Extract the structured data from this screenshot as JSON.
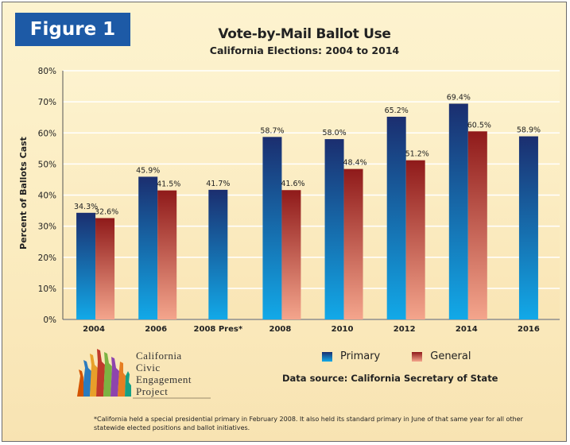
{
  "figure_label": "Figure 1",
  "logo": {
    "lines": [
      "California",
      "Civic",
      "Engagement",
      "Project"
    ]
  },
  "legend": {
    "primary": "Primary",
    "general": "General"
  },
  "source": "Data source: California Secretary of State",
  "footnote": "*California held a special presidential primary in February 2008.  It also held its standard primary in June of that same year for all other statewide elected positions and ballot initiatives.",
  "colors": {
    "primary_top": "#1b2e6f",
    "primary_bottom": "#12a9e8",
    "general_top": "#8f1a1a",
    "general_bottom": "#f4a58c"
  },
  "chart_data": {
    "type": "bar",
    "title": "Vote-by-Mail Ballot Use",
    "subtitle": "California Elections: 2004 to 2014",
    "xlabel": "",
    "ylabel": "Percent of Ballots Cast",
    "ylim": [
      0,
      80
    ],
    "yticks": [
      "0%",
      "10%",
      "20%",
      "30%",
      "40%",
      "50%",
      "60%",
      "70%",
      "80%"
    ],
    "categories": [
      "2004",
      "2006",
      "2008 Pres*",
      "2008",
      "2010",
      "2012",
      "2014",
      "2016"
    ],
    "series": [
      {
        "name": "Primary",
        "values": [
          34.3,
          45.9,
          41.7,
          58.7,
          58.0,
          65.2,
          69.4,
          58.9
        ],
        "labels": [
          "34.3%",
          "45.9%",
          "41.7%",
          "58.7%",
          "58.0%",
          "65.2%",
          "69.4%",
          "58.9%"
        ]
      },
      {
        "name": "General",
        "values": [
          32.6,
          41.5,
          null,
          41.6,
          48.4,
          51.2,
          60.5,
          null
        ],
        "labels": [
          "32.6%",
          "41.5%",
          "",
          "41.6%",
          "48.4%",
          "51.2%",
          "60.5%",
          ""
        ]
      }
    ],
    "grid": true,
    "legend_position": "bottom"
  }
}
